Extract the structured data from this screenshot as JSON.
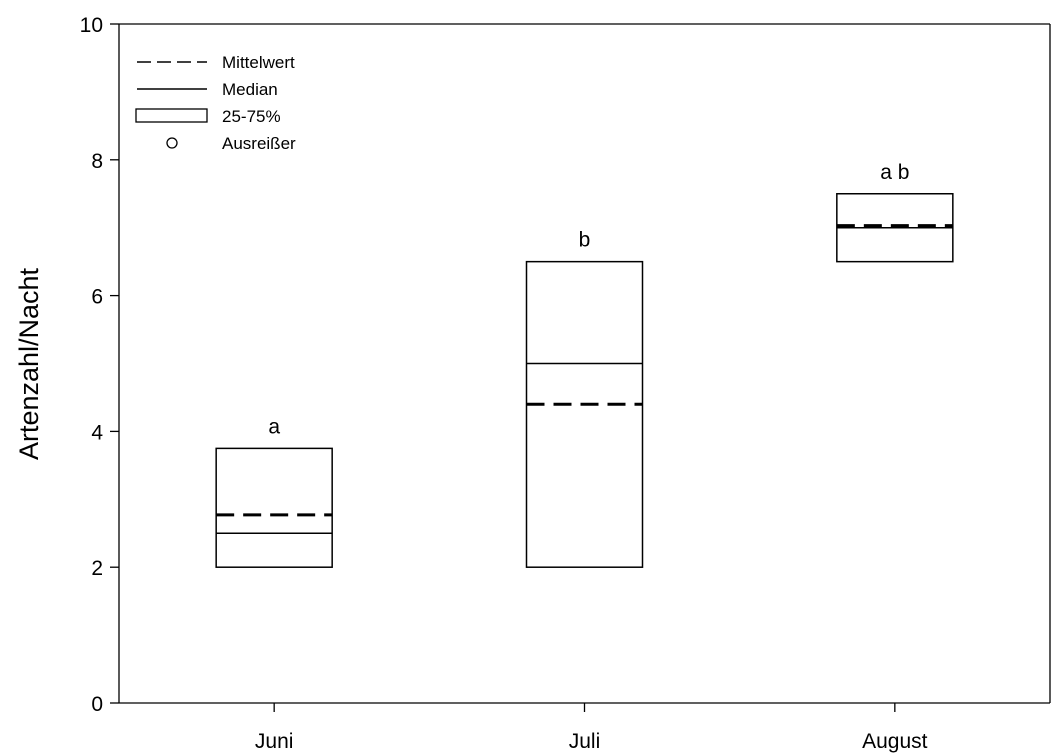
{
  "chart_data": {
    "type": "box",
    "categories": [
      "Juni",
      "Juli",
      "August"
    ],
    "xlabel": "",
    "ylabel": "Artenzahl/Nacht",
    "ylim": [
      0,
      10
    ],
    "yticks": [
      0,
      2,
      4,
      6,
      8,
      10
    ],
    "grid": false,
    "legend_position": "top-left",
    "legend": [
      {
        "label": "Mittelwert",
        "symbol": "dashed-line"
      },
      {
        "label": "Median",
        "symbol": "solid-line"
      },
      {
        "label": "25-75%",
        "symbol": "box"
      },
      {
        "label": "Ausreißer",
        "symbol": "circle"
      }
    ],
    "boxes": [
      {
        "category": "Juni",
        "q1": 2.0,
        "q3": 3.75,
        "median": 2.5,
        "mean": 2.77,
        "letter": "a"
      },
      {
        "category": "Juli",
        "q1": 2.0,
        "q3": 6.5,
        "median": 5.0,
        "mean": 4.4,
        "letter": "b"
      },
      {
        "category": "August",
        "q1": 6.5,
        "q3": 7.5,
        "median": 7.0,
        "mean": 7.03,
        "letter": "a b"
      }
    ]
  }
}
